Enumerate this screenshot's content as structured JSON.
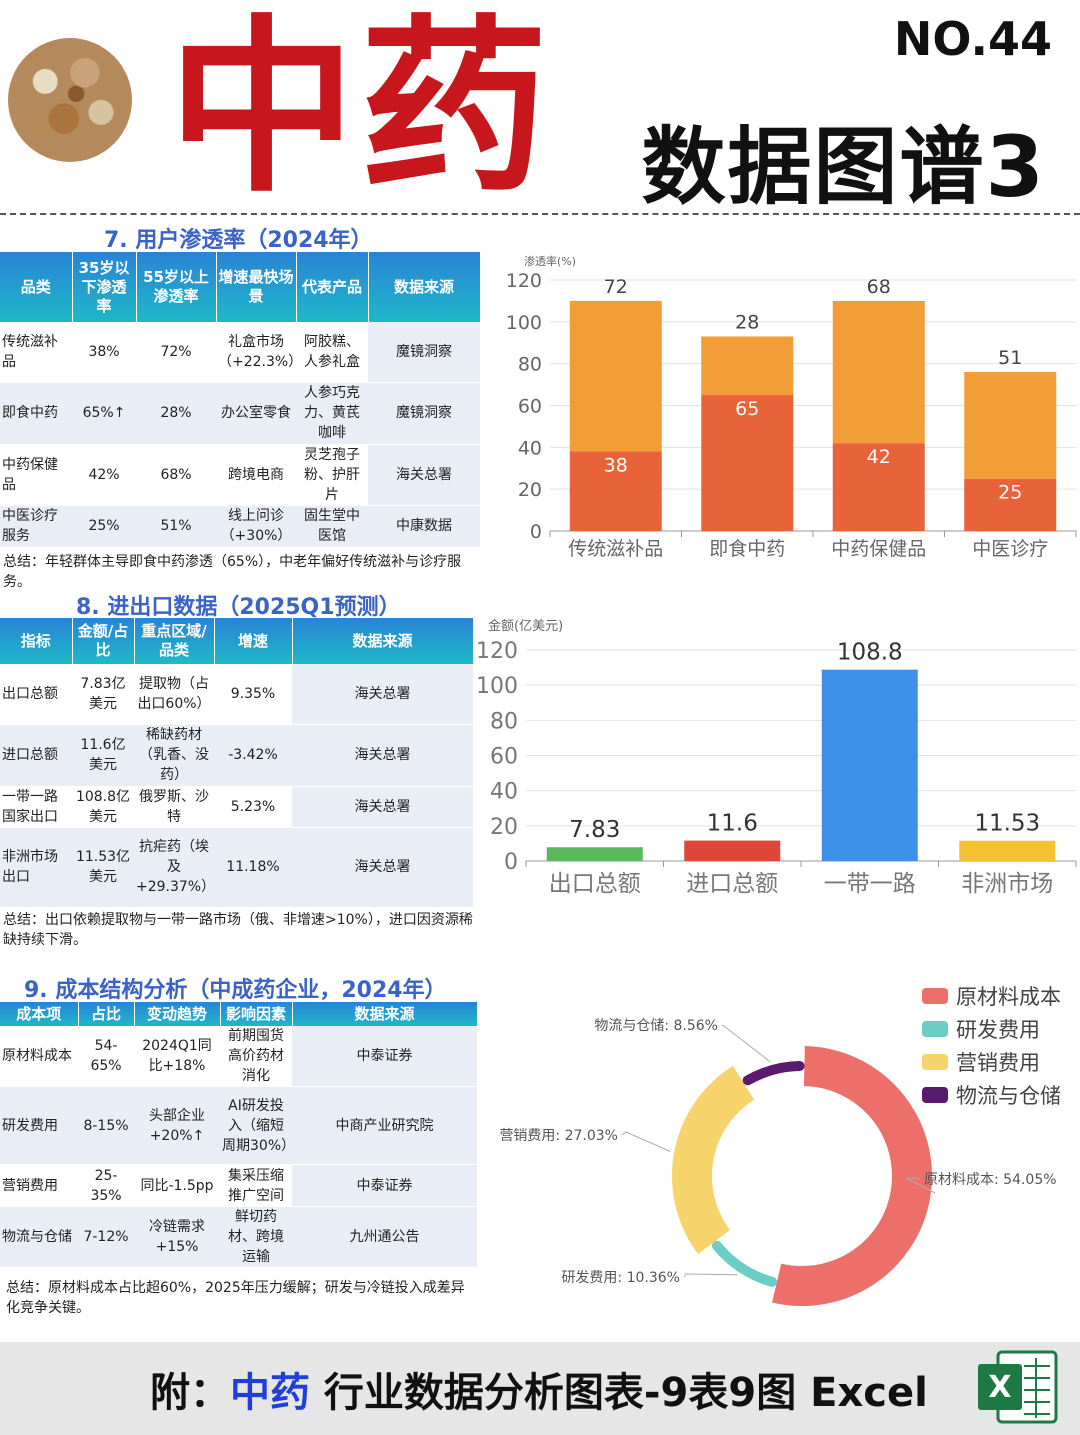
{
  "header": {
    "main_title": "中药",
    "issue_no": "NO.44",
    "subtitle": "数据图谱3"
  },
  "section7": {
    "title": "7. 用户渗透率（2024年）",
    "columns": [
      "品类",
      "35岁以下渗透率",
      "55岁以上渗透率",
      "增速最快场景",
      "代表产品",
      "数据来源"
    ],
    "rows": [
      [
        "传统滋补品",
        "38%",
        "72%",
        "礼盒市场（+22.3%）",
        "阿胶糕、人参礼盒",
        "魔镜洞察"
      ],
      [
        "即食中药",
        "65%↑",
        "28%",
        "办公室零食",
        "人参巧克力、黄芪咖啡",
        "魔镜洞察"
      ],
      [
        "中药保健品",
        "42%",
        "68%",
        "跨境电商",
        "灵芝孢子粉、护肝片",
        "海关总署"
      ],
      [
        "中医诊疗服务",
        "25%",
        "51%",
        "线上问诊（+30%）",
        "固生堂中医馆",
        "中康数据"
      ]
    ],
    "summary": "总结：年轻群体主导即食中药渗透（65%），中老年偏好传统滋补与诊疗服务。"
  },
  "section8": {
    "title": "8. 进出口数据（2025Q1预测）",
    "columns": [
      "指标",
      "金额/占比",
      "重点区域/品类",
      "增速",
      "数据来源"
    ],
    "rows": [
      [
        "出口总额",
        "7.83亿美元",
        "提取物（占出口60%）",
        "9.35%",
        "海关总署"
      ],
      [
        "进口总额",
        "11.6亿美元",
        "稀缺药材（乳香、没药）",
        "-3.42%",
        "海关总署"
      ],
      [
        "一带一路国家出口",
        "108.8亿美元",
        "俄罗斯、沙特",
        "5.23%",
        "海关总署"
      ],
      [
        "非洲市场出口",
        "11.53亿美元",
        "抗疟药（埃及+29.37%）",
        "11.18%",
        "海关总署"
      ]
    ],
    "summary": "总结：出口依赖提取物与一带一路市场（俄、非增速>10%），进口因资源稀缺持续下滑。"
  },
  "section9": {
    "title": "9. 成本结构分析（中成药企业，2024年）",
    "columns": [
      "成本项",
      "占比",
      "变动趋势",
      "影响因素",
      "数据来源"
    ],
    "rows": [
      [
        "原材料成本",
        "54-65%",
        "2024Q1同比+18%",
        "前期囤货高价药材消化",
        "中泰证券"
      ],
      [
        "研发费用",
        "8-15%",
        "头部企业+20%↑",
        "AI研发投入（缩短周期30%）",
        "中商产业研究院"
      ],
      [
        "营销费用",
        "25-35%",
        "同比-1.5pp",
        "集采压缩推广空间",
        "中泰证券"
      ],
      [
        "物流与仓储",
        "7-12%",
        "冷链需求+15%",
        "鲜切药材、跨境运输",
        "九州通公告"
      ]
    ],
    "summary": "总结：原材料成本占比超60%，2025年压力缓解；研发与冷链投入成差异化竞争关键。"
  },
  "chart_data": [
    {
      "type": "bar",
      "stacked": true,
      "ylabel": "渗透率(%)",
      "ylim": [
        0,
        120
      ],
      "yticks": [
        0,
        20,
        40,
        60,
        80,
        100,
        120
      ],
      "categories": [
        "传统滋补品",
        "即食中药",
        "中药保健品",
        "中医诊疗"
      ],
      "series": [
        {
          "values": [
            38,
            65,
            42,
            25
          ],
          "color": "#e8623a"
        },
        {
          "values": [
            72,
            28,
            68,
            51
          ],
          "color": "#f29e38"
        }
      ],
      "grid": true
    },
    {
      "type": "bar",
      "ylabel": "金额(亿美元)",
      "ylim": [
        0,
        120
      ],
      "yticks": [
        0,
        20,
        40,
        60,
        80,
        100,
        120
      ],
      "categories": [
        "出口总额",
        "进口总额",
        "一带一路",
        "非洲市场"
      ],
      "values": [
        7.83,
        11.6,
        108.8,
        11.53
      ],
      "colors": [
        "#5cb85c",
        "#e0453a",
        "#3d8fe8",
        "#f4c133"
      ],
      "grid": true
    },
    {
      "type": "pie",
      "donut": true,
      "legend_position": "top-right",
      "slices": [
        {
          "name": "原材料成本",
          "value": 54.05,
          "label": "原材料成本: 54.05%",
          "color": "#ec6f6a"
        },
        {
          "name": "研发费用",
          "value": 10.36,
          "label": "研发费用: 10.36%",
          "color": "#6ccdc6"
        },
        {
          "name": "营销费用",
          "value": 27.03,
          "label": "营销费用: 27.03%",
          "color": "#f6d36b"
        },
        {
          "name": "物流与仓储",
          "value": 8.56,
          "label": "物流与仓储: 8.56%",
          "color": "#5b1a6e"
        }
      ]
    }
  ],
  "footer": {
    "prefix": "附：",
    "highlight": "中药",
    "rest": " 行业数据分析图表-9表9图 Excel",
    "excel_letter": "X"
  }
}
